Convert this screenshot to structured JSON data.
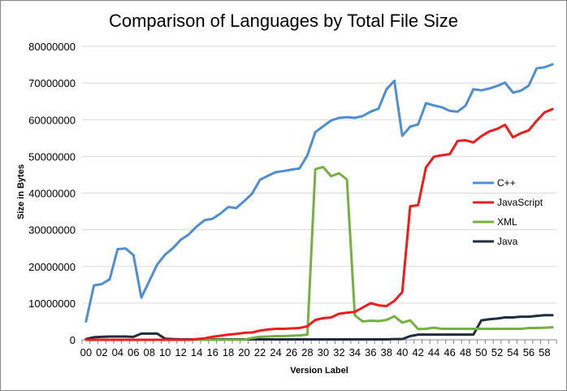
{
  "chart_data": {
    "type": "line",
    "title": "Comparison of Languages by Total File Size",
    "xlabel": "Version Label",
    "ylabel": "Size in Bytes",
    "ylim": [
      0,
      80000000
    ],
    "yticks": [
      "0",
      "10000000",
      "20000000",
      "30000000",
      "40000000",
      "50000000",
      "60000000",
      "70000000",
      "80000000"
    ],
    "x": [
      "00",
      "01",
      "02",
      "03",
      "04",
      "05",
      "06",
      "07",
      "08",
      "09",
      "10",
      "11",
      "12",
      "13",
      "14",
      "15",
      "16",
      "17",
      "18",
      "19",
      "20",
      "21",
      "22",
      "23",
      "24",
      "25",
      "26",
      "27",
      "28",
      "29",
      "30",
      "31",
      "32",
      "33",
      "34",
      "35",
      "36",
      "37",
      "38",
      "39",
      "40",
      "41",
      "42",
      "43",
      "44",
      "45",
      "46",
      "47",
      "48",
      "49",
      "50",
      "51",
      "52",
      "53",
      "54",
      "55",
      "56",
      "57",
      "58",
      "59"
    ],
    "xticks_shown": [
      "00",
      "02",
      "04",
      "06",
      "08",
      "10",
      "12",
      "14",
      "16",
      "18",
      "20",
      "22",
      "24",
      "26",
      "28",
      "30",
      "32",
      "34",
      "36",
      "38",
      "40",
      "42",
      "44",
      "46",
      "48",
      "50",
      "52",
      "54",
      "56",
      "58"
    ],
    "grid": "horizontal",
    "legend_position": "right",
    "series": [
      {
        "name": "C++",
        "color": "#4f8fcf",
        "values": [
          5000000,
          14800000,
          15200000,
          16500000,
          24700000,
          24900000,
          23100000,
          11500000,
          16000000,
          20500000,
          23200000,
          25000000,
          27300000,
          28700000,
          30900000,
          32600000,
          33000000,
          34400000,
          36200000,
          35900000,
          37800000,
          39800000,
          43600000,
          44700000,
          45700000,
          46000000,
          46400000,
          46700000,
          50300000,
          56600000,
          58200000,
          59800000,
          60500000,
          60700000,
          60500000,
          61000000,
          62200000,
          63000000,
          68300000,
          70600000,
          55600000,
          58100000,
          58700000,
          64500000,
          63900000,
          63400000,
          62400000,
          62200000,
          63800000,
          68300000,
          68000000,
          68500000,
          69200000,
          70100000,
          67400000,
          67900000,
          69300000,
          74000000,
          74300000,
          75100000
        ]
      },
      {
        "name": "JavaScript",
        "color": "#ee1c1c",
        "values": [
          0,
          0,
          0,
          0,
          0,
          0,
          0,
          0,
          0,
          0,
          0,
          0,
          0,
          0,
          200000,
          400000,
          800000,
          1100000,
          1400000,
          1600000,
          1900000,
          2000000,
          2500000,
          2800000,
          3000000,
          3000000,
          3100000,
          3200000,
          3700000,
          5400000,
          5900000,
          6100000,
          7100000,
          7400000,
          7600000,
          8800000,
          10000000,
          9400000,
          9200000,
          10600000,
          13000000,
          36400000,
          36700000,
          47000000,
          49900000,
          50300000,
          50600000,
          54200000,
          54400000,
          53800000,
          55500000,
          56800000,
          57500000,
          58600000,
          55200000,
          56300000,
          57100000,
          59700000,
          62000000,
          62900000
        ]
      },
      {
        "name": "XML",
        "color": "#76b043",
        "values": [
          0,
          0,
          0,
          0,
          0,
          0,
          0,
          0,
          0,
          0,
          0,
          0,
          0,
          0,
          0,
          0,
          0,
          0,
          0,
          0,
          0,
          500000,
          800000,
          900000,
          1000000,
          1000000,
          1100000,
          1200000,
          1400000,
          46500000,
          47100000,
          44600000,
          45400000,
          43700000,
          6700000,
          5000000,
          5200000,
          5100000,
          5400000,
          6400000,
          4700000,
          5300000,
          2900000,
          3000000,
          3300000,
          3000000,
          3000000,
          3000000,
          3000000,
          3000000,
          3000000,
          3000000,
          3000000,
          3000000,
          3000000,
          3000000,
          3200000,
          3200000,
          3300000,
          3400000
        ]
      },
      {
        "name": "Java",
        "color": "#1f2d3f",
        "values": [
          200000,
          700000,
          800000,
          900000,
          900000,
          900000,
          800000,
          1700000,
          1700000,
          1700000,
          300000,
          200000,
          100000,
          100000,
          100000,
          100000,
          100000,
          100000,
          100000,
          100000,
          100000,
          100000,
          100000,
          100000,
          100000,
          100000,
          100000,
          100000,
          100000,
          100000,
          100000,
          100000,
          100000,
          100000,
          100000,
          100000,
          100000,
          100000,
          100000,
          200000,
          200000,
          1000000,
          1400000,
          1400000,
          1400000,
          1400000,
          1400000,
          1400000,
          1400000,
          1400000,
          5300000,
          5600000,
          5800000,
          6100000,
          6100000,
          6300000,
          6300000,
          6500000,
          6700000,
          6700000
        ]
      }
    ]
  }
}
